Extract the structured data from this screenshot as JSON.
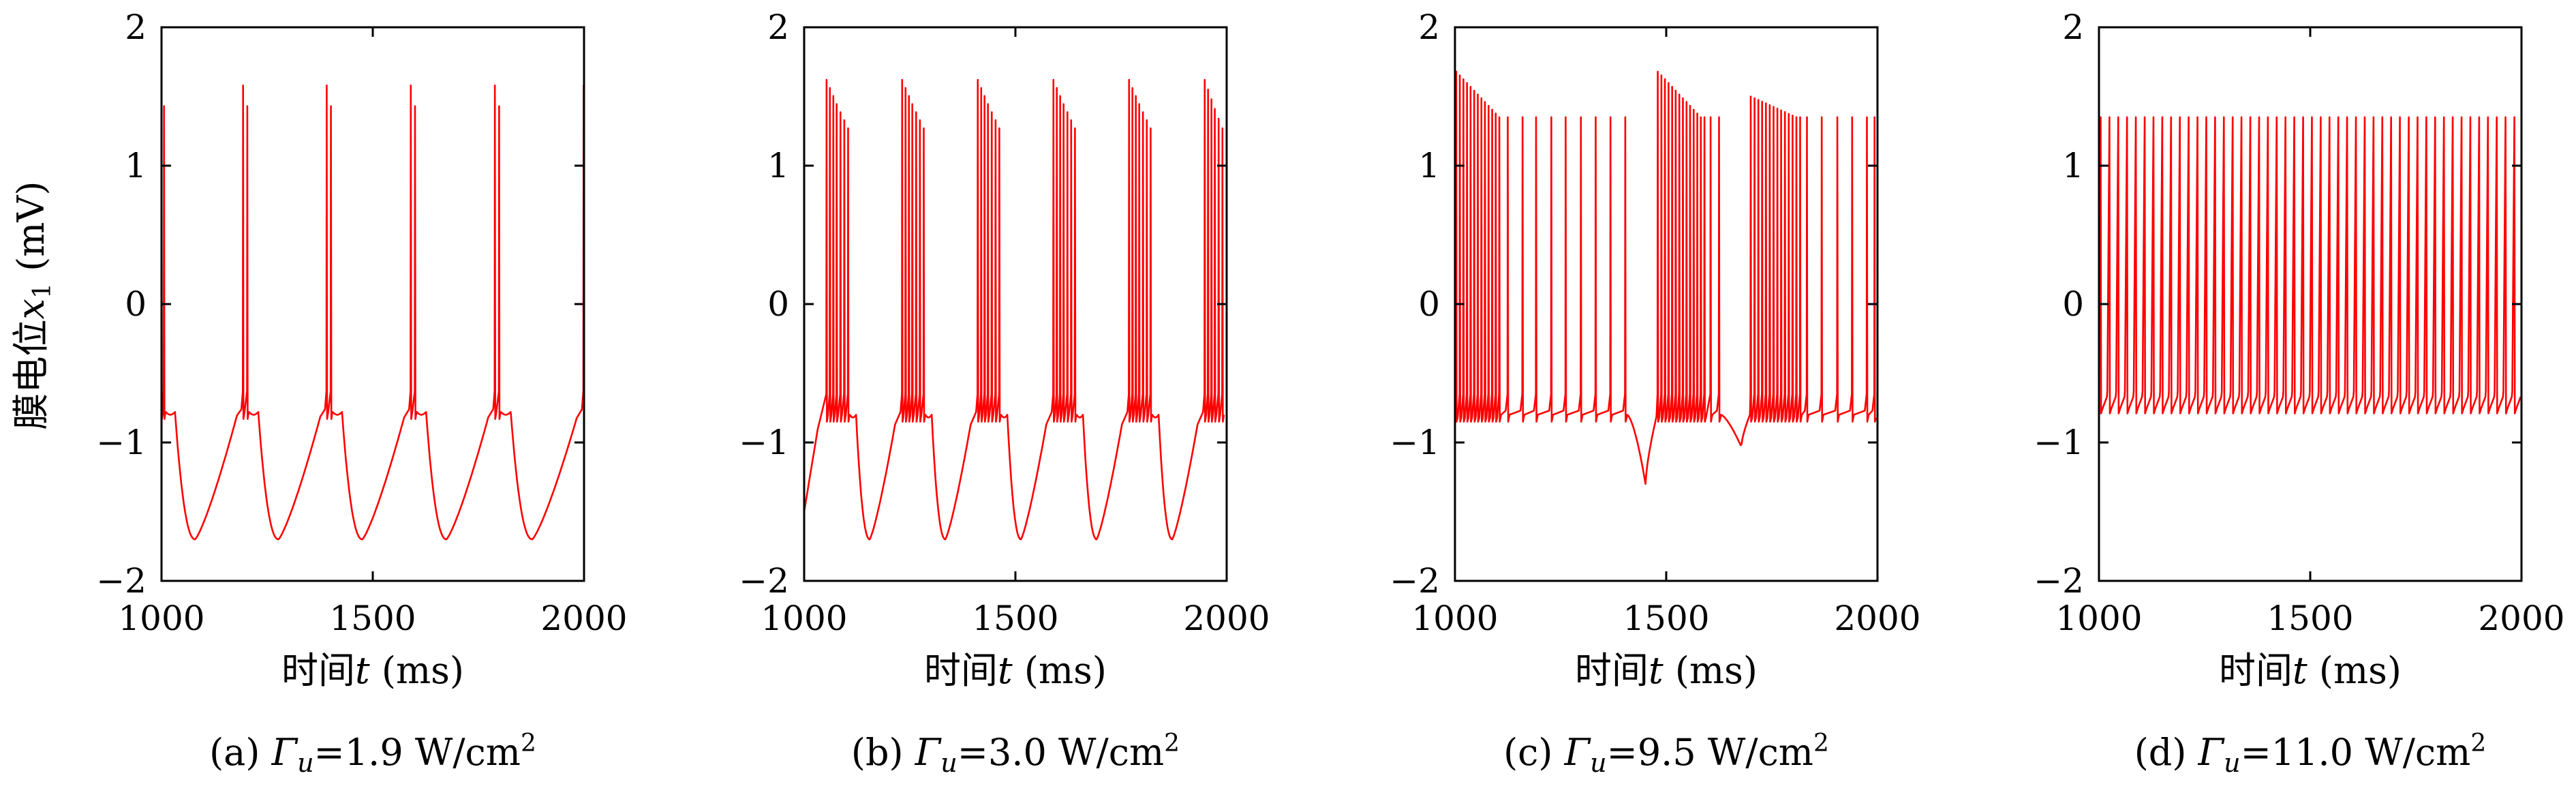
{
  "figure": {
    "ylabel": "膜电位",
    "ylabel_var": "x",
    "ylabel_sub": "1",
    "ylabel_unit": " (mV)"
  },
  "chart_data": [
    {
      "type": "line",
      "panel": "a",
      "xlabel_cn": "时间",
      "xlabel_var": "t",
      "xlabel_unit": " (ms)",
      "caption_prefix": "(a) ",
      "caption_sym": "Γ",
      "caption_sub": "u",
      "caption_value": "=1.9 W/cm",
      "caption_sup": "2",
      "xlim": [
        1000,
        2000
      ],
      "ylim": [
        -2,
        2
      ],
      "xticks": [
        "1000",
        "1500",
        "2000"
      ],
      "yticks": [
        "−2",
        "−1",
        "0",
        "1",
        "2"
      ],
      "series": [
        {
          "color": "#ff0000",
          "pattern": "bursting",
          "baseline_min": -1.7,
          "plateau": -0.78,
          "spike_peak_max": 1.58,
          "spike_peak_min": 1.43,
          "bursts": [
            {
              "t": 1000,
              "spikes": [
                1000,
                1006
              ]
            },
            {
              "t": 1195,
              "spikes": [
                1193,
                1203
              ]
            },
            {
              "t": 1393,
              "spikes": [
                1391,
                1401
              ]
            },
            {
              "t": 1592,
              "spikes": [
                1590,
                1600
              ]
            },
            {
              "t": 1791,
              "spikes": [
                1789,
                1799
              ]
            },
            {
              "t": 1998,
              "spikes": [
                1999
              ]
            }
          ]
        }
      ]
    },
    {
      "type": "line",
      "panel": "b",
      "xlabel_cn": "时间",
      "xlabel_var": "t",
      "xlabel_unit": " (ms)",
      "caption_prefix": "(b) ",
      "caption_sym": "Γ",
      "caption_sub": "u",
      "caption_value": "=3.0 W/cm",
      "caption_sup": "2",
      "xlim": [
        1000,
        2000
      ],
      "ylim": [
        -2,
        2
      ],
      "xticks": [
        "1000",
        "1500",
        "2000"
      ],
      "yticks": [
        "−2",
        "−1",
        "0",
        "1",
        "2"
      ],
      "series": [
        {
          "color": "#ff0000",
          "pattern": "bursting",
          "baseline_min": -1.7,
          "plateau": -0.8,
          "spike_peak_max": 1.62,
          "spike_peak_min": 1.27,
          "bursts": [
            {
              "t": 1055,
              "spikes": [
                1053,
                1061,
                1069,
                1077,
                1086,
                1095,
                1104
              ]
            },
            {
              "t": 1234,
              "spikes": [
                1232,
                1240,
                1248,
                1256,
                1265,
                1274,
                1283
              ]
            },
            {
              "t": 1413,
              "spikes": [
                1411,
                1419,
                1427,
                1435,
                1444,
                1453,
                1462
              ]
            },
            {
              "t": 1592,
              "spikes": [
                1590,
                1598,
                1606,
                1614,
                1623,
                1632,
                1641
              ]
            },
            {
              "t": 1771,
              "spikes": [
                1769,
                1777,
                1785,
                1793,
                1802,
                1811,
                1820
              ]
            },
            {
              "t": 1950,
              "spikes": [
                1948,
                1956,
                1964,
                1972,
                1981,
                1990
              ]
            }
          ]
        }
      ]
    },
    {
      "type": "line",
      "panel": "c",
      "xlabel_cn": "时间",
      "xlabel_var": "t",
      "xlabel_unit": " (ms)",
      "caption_prefix": "(c) ",
      "caption_sym": "Γ",
      "caption_sub": "u",
      "caption_value": "=9.5 W/cm",
      "caption_sup": "2",
      "xlim": [
        1000,
        2000
      ],
      "ylim": [
        -2,
        2
      ],
      "xticks": [
        "1000",
        "1500",
        "2000"
      ],
      "yticks": [
        "−2",
        "−1",
        "0",
        "1",
        "2"
      ],
      "series": [
        {
          "color": "#ff0000",
          "pattern": "mixed",
          "trough_min": -1.3,
          "trough2_min": -1.03,
          "plateau": -0.8,
          "spike_peak_max": 1.68,
          "spike_peak_min": 1.35
        }
      ]
    },
    {
      "type": "line",
      "panel": "d",
      "xlabel_cn": "时间",
      "xlabel_var": "t",
      "xlabel_unit": " (ms)",
      "caption_prefix": "(d) ",
      "caption_sym": "Γ",
      "caption_sub": "u",
      "caption_value": "=11.0 W/cm",
      "caption_sup": "2",
      "xlim": [
        1000,
        2000
      ],
      "ylim": [
        -2,
        2
      ],
      "xticks": [
        "1000",
        "1500",
        "2000"
      ],
      "yticks": [
        "−2",
        "−1",
        "0",
        "1",
        "2"
      ],
      "series": [
        {
          "color": "#ff0000",
          "pattern": "tonic",
          "baseline": -0.75,
          "spike_peak": 1.35,
          "spike_count": 48
        }
      ]
    }
  ]
}
